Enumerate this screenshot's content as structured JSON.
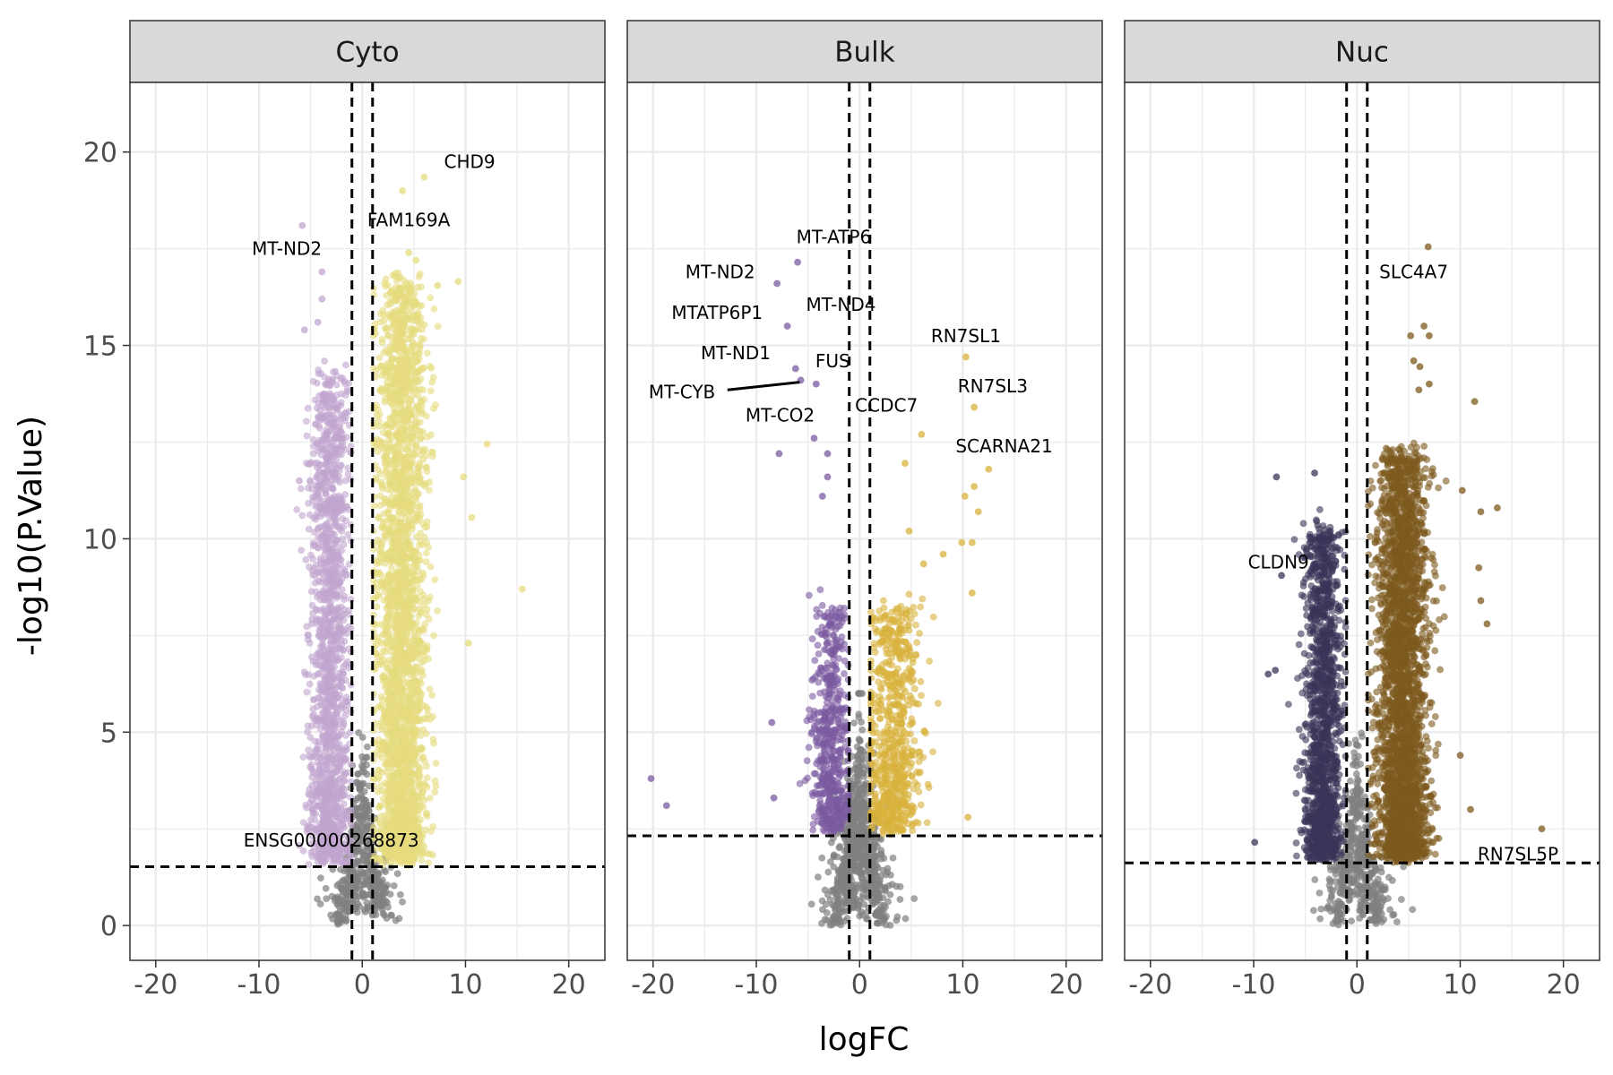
{
  "chart_data": {
    "type": "scatter",
    "xlabel": "logFC",
    "ylabel": "-log10(P.Value)",
    "xlim": [
      -22.5,
      23.5
    ],
    "ylim": [
      -0.9,
      21.8
    ],
    "x_ticks": [
      -20,
      -10,
      0,
      10,
      20
    ],
    "x_tick_labels": [
      "-20",
      "-10",
      "0",
      "10",
      "20"
    ],
    "y_ticks": [
      0,
      5,
      10,
      15,
      20
    ],
    "y_tick_labels": [
      "0",
      "5",
      "10",
      "15",
      "20"
    ],
    "grid": true,
    "logfc_thresholds": [
      -1,
      1
    ],
    "colors": {
      "not_significant": "#808080",
      "strip_fill": "#d9d9d9",
      "gridline": "#ebebeb",
      "panel_border": "#333333"
    },
    "panels": [
      {
        "name": "Cyto",
        "pvalue_threshold": 1.52,
        "down_color": "#c2a5cf",
        "up_color": "#e6dc7e",
        "down_summary": {
          "x_center": -3.2,
          "x_spread": 1.4,
          "y_max": 14,
          "count": 1500
        },
        "up_summary": {
          "x_center": 3.8,
          "x_spread": 1.7,
          "y_max": 16.5,
          "count": 2600
        },
        "ns_count": 450,
        "outliers": [
          {
            "x": 6.0,
            "y": 19.35,
            "dir": "up"
          },
          {
            "x": 3.9,
            "y": 19.0,
            "dir": "up"
          },
          {
            "x": 4.5,
            "y": 17.4,
            "dir": "up"
          },
          {
            "x": 5.2,
            "y": 17.2,
            "dir": "up"
          },
          {
            "x": 9.3,
            "y": 16.65,
            "dir": "up"
          },
          {
            "x": 7.3,
            "y": 16.55,
            "dir": "up"
          },
          {
            "x": 12.1,
            "y": 12.45,
            "dir": "up"
          },
          {
            "x": 9.8,
            "y": 11.6,
            "dir": "up"
          },
          {
            "x": 10.6,
            "y": 10.55,
            "dir": "up"
          },
          {
            "x": 15.5,
            "y": 8.7,
            "dir": "up"
          },
          {
            "x": 10.3,
            "y": 7.3,
            "dir": "up"
          },
          {
            "x": -5.8,
            "y": 18.1,
            "dir": "down"
          },
          {
            "x": -3.9,
            "y": 16.9,
            "dir": "down"
          },
          {
            "x": -3.9,
            "y": 16.2,
            "dir": "down"
          },
          {
            "x": -5.6,
            "y": 15.4,
            "dir": "down"
          },
          {
            "x": -4.3,
            "y": 15.6,
            "dir": "down"
          },
          {
            "x": -6.1,
            "y": 11.5,
            "dir": "down"
          }
        ],
        "labels": [
          {
            "text": "CHD9",
            "x": 10.4,
            "y": 19.75
          },
          {
            "text": "FAM169A",
            "x": 4.5,
            "y": 18.25
          },
          {
            "text": "MT-ND2",
            "x": -7.3,
            "y": 17.5
          },
          {
            "text": "ENSG00000268873",
            "x": -3.0,
            "y": 2.2
          }
        ]
      },
      {
        "name": "Bulk",
        "pvalue_threshold": 2.32,
        "down_color": "#7b5aa0",
        "up_color": "#d9b23c",
        "down_summary": {
          "x_center": -2.8,
          "x_spread": 1.3,
          "y_max": 8,
          "count": 520
        },
        "up_summary": {
          "x_center": 3.3,
          "x_spread": 1.8,
          "y_max": 8,
          "count": 680
        },
        "ns_count": 700,
        "outliers": [
          {
            "x": 11.1,
            "y": 13.4,
            "dir": "up"
          },
          {
            "x": 10.3,
            "y": 14.7,
            "dir": "up"
          },
          {
            "x": 6.0,
            "y": 12.7,
            "dir": "up"
          },
          {
            "x": 12.5,
            "y": 11.8,
            "dir": "up"
          },
          {
            "x": 4.4,
            "y": 11.95,
            "dir": "up"
          },
          {
            "x": 11.1,
            "y": 11.35,
            "dir": "up"
          },
          {
            "x": 10.2,
            "y": 11.1,
            "dir": "up"
          },
          {
            "x": 11.5,
            "y": 10.7,
            "dir": "up"
          },
          {
            "x": 4.8,
            "y": 10.2,
            "dir": "up"
          },
          {
            "x": 9.9,
            "y": 9.9,
            "dir": "up"
          },
          {
            "x": 10.9,
            "y": 9.9,
            "dir": "up"
          },
          {
            "x": 8.1,
            "y": 9.6,
            "dir": "up"
          },
          {
            "x": 6.2,
            "y": 9.35,
            "dir": "up"
          },
          {
            "x": 10.9,
            "y": 8.6,
            "dir": "up"
          },
          {
            "x": 10.5,
            "y": 2.8,
            "dir": "up"
          },
          {
            "x": -6.0,
            "y": 17.15,
            "dir": "down"
          },
          {
            "x": -8.0,
            "y": 16.6,
            "dir": "down"
          },
          {
            "x": -7.0,
            "y": 15.5,
            "dir": "down"
          },
          {
            "x": -6.2,
            "y": 14.4,
            "dir": "down"
          },
          {
            "x": -5.7,
            "y": 14.1,
            "dir": "down"
          },
          {
            "x": -4.2,
            "y": 14.0,
            "dir": "down"
          },
          {
            "x": -4.4,
            "y": 12.6,
            "dir": "down"
          },
          {
            "x": -7.8,
            "y": 12.2,
            "dir": "down"
          },
          {
            "x": -3.1,
            "y": 12.2,
            "dir": "down"
          },
          {
            "x": -3.1,
            "y": 11.6,
            "dir": "down"
          },
          {
            "x": -3.6,
            "y": 11.1,
            "dir": "down"
          },
          {
            "x": -20.2,
            "y": 3.8,
            "dir": "down"
          },
          {
            "x": -18.7,
            "y": 3.1,
            "dir": "down"
          },
          {
            "x": -8.5,
            "y": 5.25,
            "dir": "down"
          },
          {
            "x": -8.3,
            "y": 3.3,
            "dir": "down"
          }
        ],
        "labels": [
          {
            "text": "MT-ATP6",
            "x": -2.5,
            "y": 17.8
          },
          {
            "text": "MT-ND2",
            "x": -13.5,
            "y": 16.9
          },
          {
            "text": "MTATP6P1",
            "x": -13.8,
            "y": 15.85
          },
          {
            "text": "MT-ND4",
            "x": -1.8,
            "y": 16.05
          },
          {
            "text": "RN7SL1",
            "x": 10.3,
            "y": 15.25
          },
          {
            "text": "MT-ND1",
            "x": -12.0,
            "y": 14.8
          },
          {
            "text": "FUS",
            "x": -2.6,
            "y": 14.6
          },
          {
            "text": "RN7SL3",
            "x": 12.9,
            "y": 13.95
          },
          {
            "text": "MT-CYB",
            "x": -17.2,
            "y": 13.8
          },
          {
            "text": "CCDC7",
            "x": 2.6,
            "y": 13.45
          },
          {
            "text": "MT-CO2",
            "x": -7.7,
            "y": 13.2
          },
          {
            "text": "SCARNA21",
            "x": 14.0,
            "y": 12.4
          }
        ],
        "connectors": [
          {
            "from": [
              -12.8,
              13.85
            ],
            "to": [
              -5.8,
              14.05
            ]
          }
        ]
      },
      {
        "name": "Nuc",
        "pvalue_threshold": 1.62,
        "down_color": "#3b3559",
        "up_color": "#7d5a1e",
        "down_summary": {
          "x_center": -3.3,
          "x_spread": 1.3,
          "y_max": 10,
          "count": 1300
        },
        "up_summary": {
          "x_center": 4.4,
          "x_spread": 1.8,
          "y_max": 12,
          "count": 2600
        },
        "ns_count": 450,
        "outliers": [
          {
            "x": 6.9,
            "y": 17.55,
            "dir": "up"
          },
          {
            "x": 6.5,
            "y": 15.5,
            "dir": "up"
          },
          {
            "x": 7.0,
            "y": 15.25,
            "dir": "up"
          },
          {
            "x": 5.2,
            "y": 15.25,
            "dir": "up"
          },
          {
            "x": 5.5,
            "y": 14.6,
            "dir": "up"
          },
          {
            "x": 6.1,
            "y": 14.45,
            "dir": "up"
          },
          {
            "x": 6.0,
            "y": 13.85,
            "dir": "up"
          },
          {
            "x": 7.0,
            "y": 14.0,
            "dir": "up"
          },
          {
            "x": 11.4,
            "y": 13.55,
            "dir": "up"
          },
          {
            "x": 10.2,
            "y": 11.25,
            "dir": "up"
          },
          {
            "x": 13.6,
            "y": 10.8,
            "dir": "up"
          },
          {
            "x": 12.0,
            "y": 10.7,
            "dir": "up"
          },
          {
            "x": 11.8,
            "y": 9.25,
            "dir": "up"
          },
          {
            "x": 12.0,
            "y": 8.4,
            "dir": "up"
          },
          {
            "x": 12.6,
            "y": 7.8,
            "dir": "up"
          },
          {
            "x": 10.0,
            "y": 4.4,
            "dir": "up"
          },
          {
            "x": 11.0,
            "y": 3.0,
            "dir": "up"
          },
          {
            "x": 17.9,
            "y": 2.5,
            "dir": "up"
          },
          {
            "x": -7.8,
            "y": 11.6,
            "dir": "down"
          },
          {
            "x": -4.1,
            "y": 11.7,
            "dir": "down"
          },
          {
            "x": -7.3,
            "y": 9.05,
            "dir": "down"
          },
          {
            "x": -7.9,
            "y": 6.6,
            "dir": "down"
          },
          {
            "x": -8.6,
            "y": 6.5,
            "dir": "down"
          },
          {
            "x": -9.9,
            "y": 2.15,
            "dir": "down"
          }
        ],
        "labels": [
          {
            "text": "SLC4A7",
            "x": 5.5,
            "y": 16.9
          },
          {
            "text": "CLDN9",
            "x": -7.6,
            "y": 9.4
          },
          {
            "text": "RN7SL5P",
            "x": 15.6,
            "y": 1.85
          }
        ]
      }
    ]
  }
}
